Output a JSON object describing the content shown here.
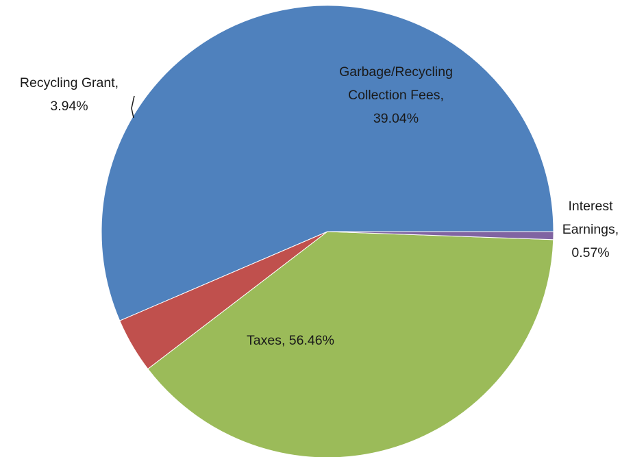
{
  "chart_data": {
    "type": "pie",
    "title": "",
    "start": "3 o'clock, counter-clockwise",
    "slices": [
      {
        "name": "Taxes",
        "value": 56.46,
        "label": [
          "Taxes, 56.46%"
        ],
        "color": "#4F81BD"
      },
      {
        "name": "Recycling Grant",
        "value": 3.94,
        "label": [
          "Recycling Grant,",
          "3.94%"
        ],
        "color": "#C0504D"
      },
      {
        "name": "Garbage/Recycling Collection Fees",
        "value": 39.04,
        "label": [
          "Garbage/Recycling",
          "Collection Fees,",
          "39.04%"
        ],
        "color": "#9BBB59"
      },
      {
        "name": "Interest Earnings",
        "value": 0.57,
        "label": [
          "Interest",
          "Earnings,",
          "0.57%"
        ],
        "color": "#8064A2"
      }
    ]
  }
}
